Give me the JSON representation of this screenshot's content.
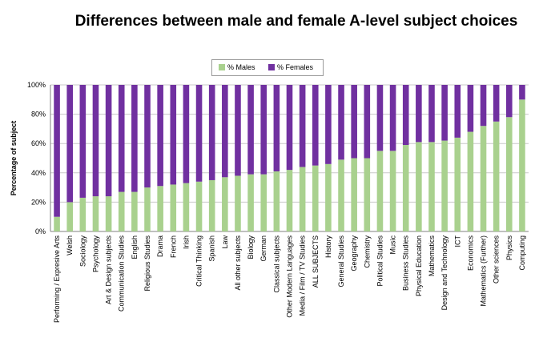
{
  "chart_data": {
    "type": "bar",
    "stacked": true,
    "title": "Differences between male and female A-level subject choices",
    "xlabel": "",
    "ylabel": "Percentage of subject",
    "ylim": [
      0,
      100
    ],
    "yticks": [
      "0%",
      "20%",
      "40%",
      "60%",
      "80%",
      "100%"
    ],
    "legend_position": "top-center",
    "categories": [
      "Performing / Expresive Arts",
      "Welsh",
      "Sociology",
      "Psychology",
      "Art & Design subjects",
      "Communication Studies",
      "English",
      "Religious Studies",
      "Drama",
      "French",
      "Irish",
      "Critical Thinking",
      "Spanish",
      "Law",
      "All other subjects",
      "Biology",
      "German",
      "Classical subjects",
      "Other Modern Languages",
      "Media / Film / TV Studies",
      "ALL SUBJECTS",
      "History",
      "General Studies",
      "Geography",
      "Chemistry",
      "Political Studies",
      "Music",
      "Business Studies",
      "Physical Education",
      "Mathematics",
      "Design and Technology",
      "ICT",
      "Economics",
      "Mathematics (Further)",
      "Other sciences",
      "Physics",
      "Computing"
    ],
    "series": [
      {
        "name": "% Males",
        "color": "#a9d18e",
        "values": [
          10,
          20,
          23,
          24,
          24,
          27,
          27,
          30,
          31,
          32,
          33,
          34,
          35,
          37,
          38,
          39,
          39,
          41,
          42,
          44,
          45,
          46,
          49,
          50,
          50,
          55,
          55,
          59,
          61,
          61,
          62,
          64,
          68,
          72,
          75,
          78,
          90
        ]
      },
      {
        "name": "% Females",
        "color": "#7030a0",
        "values": [
          90,
          80,
          77,
          76,
          76,
          73,
          73,
          70,
          69,
          68,
          67,
          66,
          65,
          63,
          62,
          61,
          61,
          59,
          58,
          56,
          55,
          54,
          51,
          50,
          50,
          45,
          45,
          41,
          39,
          39,
          38,
          36,
          32,
          28,
          25,
          22,
          10
        ]
      }
    ]
  }
}
